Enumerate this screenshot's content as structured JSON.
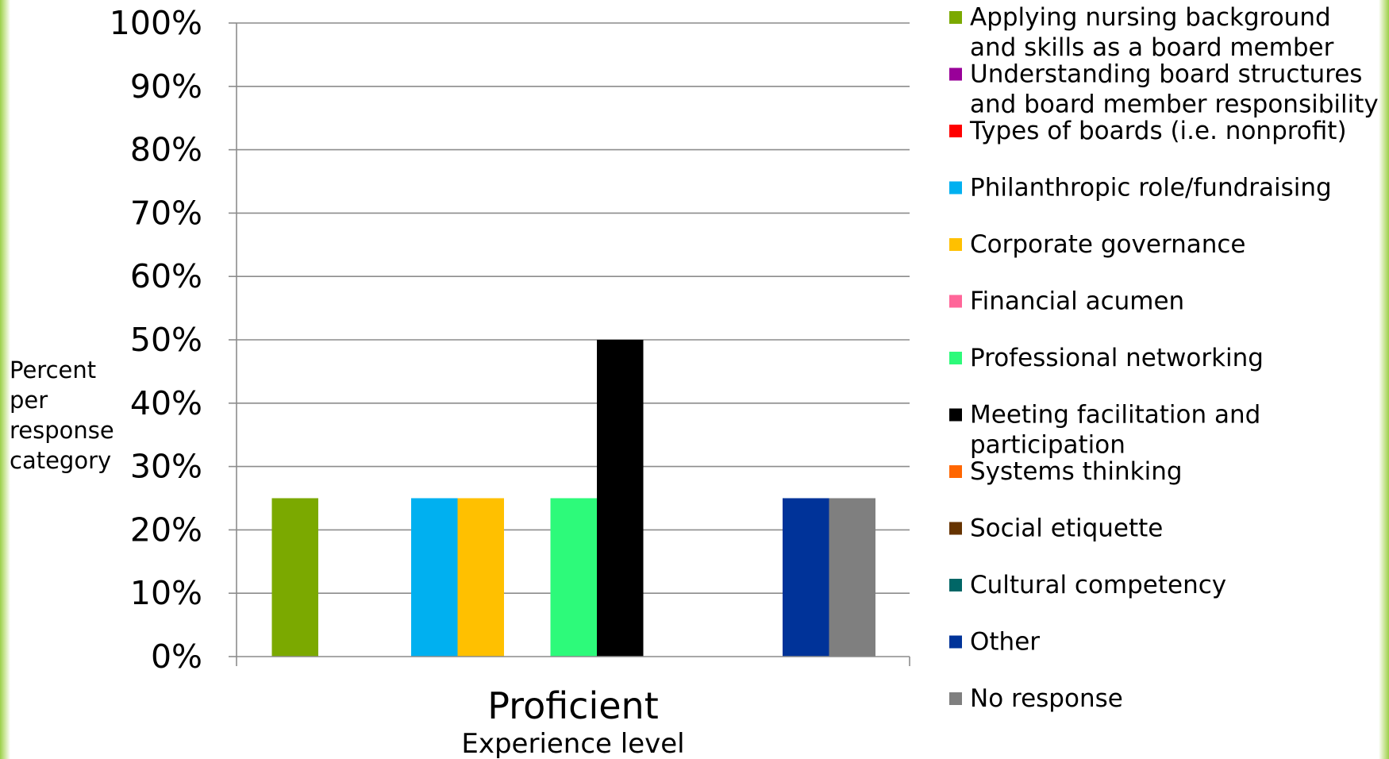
{
  "chart_data": {
    "type": "bar",
    "categories": [
      "Proficient"
    ],
    "xlabel": "Experience level",
    "ylabel": "Percent per response category",
    "ylim": [
      0,
      1
    ],
    "y_ticks": [
      "0%",
      "10%",
      "20%",
      "30%",
      "40%",
      "50%",
      "60%",
      "70%",
      "80%",
      "90%",
      "100%"
    ],
    "grid": true,
    "legend_position": "right",
    "series": [
      {
        "name": "Applying nursing background and skills as a board member",
        "color": "#7ba900",
        "values": [
          0.25
        ]
      },
      {
        "name": "Understanding board structures and board member responsibility",
        "color": "#990099",
        "values": [
          0
        ]
      },
      {
        "name": "Types of boards (i.e. nonprofit)",
        "color": "#ff0000",
        "values": [
          0
        ]
      },
      {
        "name": "Philanthropic role/fundraising",
        "color": "#00b0f0",
        "values": [
          0.25
        ]
      },
      {
        "name": "Corporate governance",
        "color": "#ffc000",
        "values": [
          0.25
        ]
      },
      {
        "name": "Financial acumen",
        "color": "#ff6699",
        "values": [
          0
        ]
      },
      {
        "name": "Professional networking",
        "color": "#2dfa7a",
        "values": [
          0.25
        ]
      },
      {
        "name": "Meeting facilitation and participation",
        "color": "#000000",
        "values": [
          0.5
        ]
      },
      {
        "name": "Systems thinking",
        "color": "#ff6600",
        "values": [
          0
        ]
      },
      {
        "name": "Social etiquette",
        "color": "#663300",
        "values": [
          0
        ]
      },
      {
        "name": "Cultural competency",
        "color": "#006666",
        "values": [
          0
        ]
      },
      {
        "name": "Other",
        "color": "#003399",
        "values": [
          0.25
        ]
      },
      {
        "name": "No response",
        "color": "#7f7f7f",
        "values": [
          0.25
        ]
      }
    ]
  }
}
